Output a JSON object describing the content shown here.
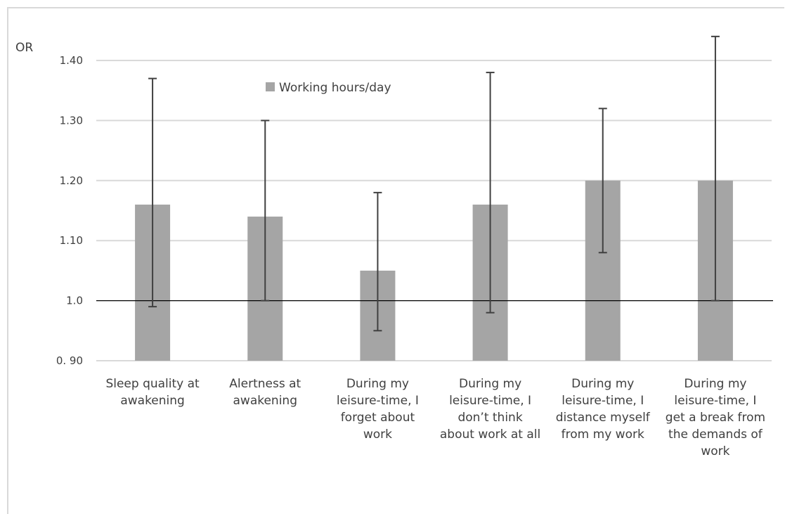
{
  "chart_data": {
    "type": "bar",
    "ylabel": "OR",
    "ylim": [
      0.9,
      1.4
    ],
    "yticks": [
      {
        "value": 0.9,
        "label": "0. 90"
      },
      {
        "value": 1.0,
        "label": "1.0"
      },
      {
        "value": 1.1,
        "label": "1.10"
      },
      {
        "value": 1.2,
        "label": "1.20"
      },
      {
        "value": 1.3,
        "label": "1.30"
      },
      {
        "value": 1.4,
        "label": "1.40"
      }
    ],
    "reference_line": 1.0,
    "grid": true,
    "legend": {
      "placement": "top-center",
      "entries": [
        "Working hours/day"
      ]
    },
    "categories": [
      [
        "Sleep quality at",
        "awakening"
      ],
      [
        "Alertness at",
        "awakening"
      ],
      [
        "During my",
        "leisure-time, I",
        "forget about",
        "work"
      ],
      [
        "During my",
        "leisure-time, I",
        "don’t think",
        "about work at all"
      ],
      [
        "During my",
        "leisure-time, I",
        "distance myself",
        "from my work"
      ],
      [
        "During my",
        "leisure-time, I",
        "get a break from",
        "the demands of",
        "work"
      ]
    ],
    "series": [
      {
        "name": "Working hours/day",
        "color": "#a5a5a5",
        "values": [
          1.16,
          1.14,
          1.05,
          1.16,
          1.2,
          1.2
        ],
        "ci_low": [
          0.99,
          1.0,
          0.95,
          0.98,
          1.08,
          1.0
        ],
        "ci_high": [
          1.37,
          1.3,
          1.18,
          1.38,
          1.32,
          1.44
        ]
      }
    ]
  }
}
